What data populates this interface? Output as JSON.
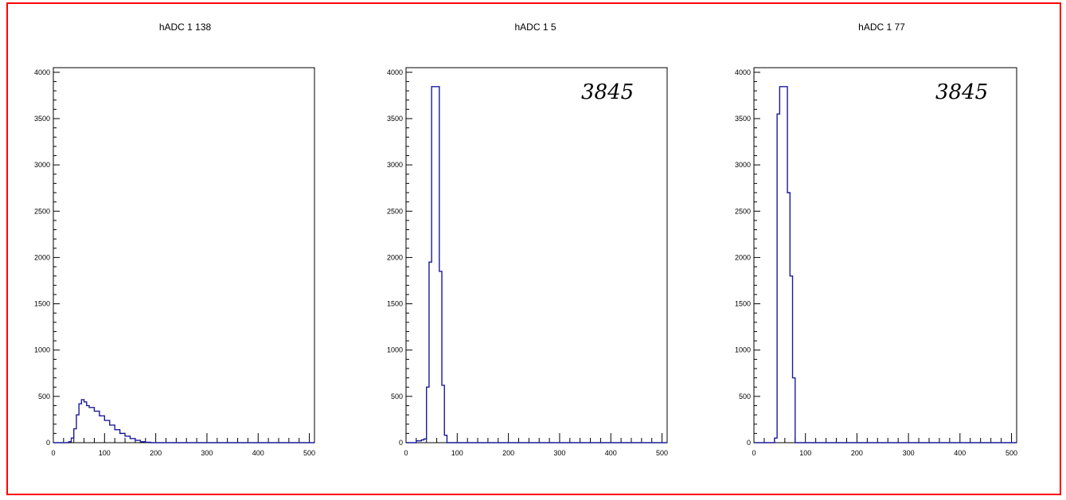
{
  "charts_colors": {
    "line": "#1a1a9a",
    "frame": "#ff0000",
    "axis": "#000000"
  },
  "chart_data": [
    {
      "type": "line",
      "title": "hADC 1 138",
      "annotation": "",
      "xlim": [
        0,
        510
      ],
      "ylim": [
        0,
        4050
      ],
      "xticks": [
        "0",
        "100",
        "200",
        "300",
        "400",
        "500"
      ],
      "yticks": [
        "0",
        "500",
        "1000",
        "1500",
        "2000",
        "2500",
        "3000",
        "3500",
        "4000"
      ],
      "xtick_values": [
        0,
        100,
        200,
        300,
        400,
        500
      ],
      "ytick_values": [
        0,
        500,
        1000,
        1500,
        2000,
        2500,
        3000,
        3500,
        4000
      ],
      "x": [
        0,
        10,
        20,
        30,
        35,
        40,
        45,
        50,
        55,
        60,
        65,
        70,
        80,
        90,
        100,
        110,
        120,
        130,
        140,
        150,
        160,
        170,
        180,
        190,
        200,
        300,
        400,
        500
      ],
      "y": [
        0,
        0,
        0,
        10,
        50,
        150,
        300,
        420,
        465,
        440,
        400,
        380,
        340,
        290,
        240,
        190,
        140,
        100,
        70,
        45,
        25,
        10,
        5,
        0,
        0,
        0,
        0,
        0
      ]
    },
    {
      "type": "line",
      "title": "hADC 1 5",
      "annotation": "3845",
      "xlim": [
        0,
        510
      ],
      "ylim": [
        0,
        4050
      ],
      "xticks": [
        "0",
        "100",
        "200",
        "300",
        "400",
        "500"
      ],
      "yticks": [
        "0",
        "500",
        "1000",
        "1500",
        "2000",
        "2500",
        "3000",
        "3500",
        "4000"
      ],
      "xtick_values": [
        0,
        100,
        200,
        300,
        400,
        500
      ],
      "ytick_values": [
        0,
        500,
        1000,
        1500,
        2000,
        2500,
        3000,
        3500,
        4000
      ],
      "x": [
        0,
        10,
        20,
        30,
        35,
        40,
        45,
        50,
        55,
        60,
        65,
        70,
        75,
        80,
        90,
        100,
        200,
        300,
        400,
        500
      ],
      "y": [
        0,
        0,
        20,
        30,
        40,
        600,
        1950,
        3845,
        3845,
        3845,
        1850,
        620,
        80,
        0,
        0,
        0,
        0,
        0,
        0,
        0
      ]
    },
    {
      "type": "line",
      "title": "hADC 1 77",
      "annotation": "3845",
      "xlim": [
        0,
        510
      ],
      "ylim": [
        0,
        4050
      ],
      "xticks": [
        "0",
        "100",
        "200",
        "300",
        "400",
        "500"
      ],
      "yticks": [
        "0",
        "500",
        "1000",
        "1500",
        "2000",
        "2500",
        "3000",
        "3500",
        "4000"
      ],
      "xtick_values": [
        0,
        100,
        200,
        300,
        400,
        500
      ],
      "ytick_values": [
        0,
        500,
        1000,
        1500,
        2000,
        2500,
        3000,
        3500,
        4000
      ],
      "x": [
        0,
        10,
        20,
        30,
        40,
        45,
        50,
        55,
        60,
        65,
        70,
        75,
        80,
        90,
        100,
        200,
        300,
        400,
        500
      ],
      "y": [
        0,
        0,
        0,
        0,
        50,
        3550,
        3845,
        3845,
        3845,
        2700,
        1800,
        700,
        0,
        0,
        0,
        0,
        0,
        0,
        0
      ]
    }
  ]
}
